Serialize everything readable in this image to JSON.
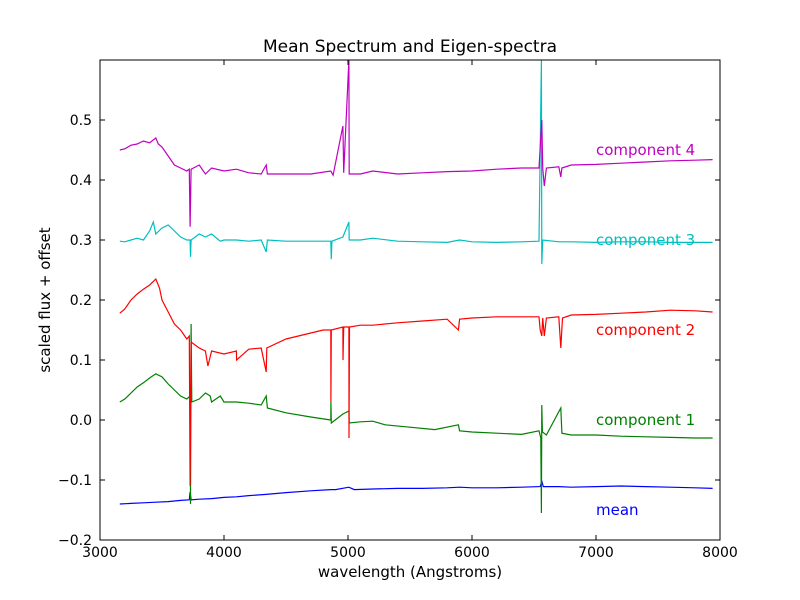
{
  "chart_data": {
    "type": "line",
    "title": "Mean Spectrum and Eigen-spectra",
    "xlabel": "wavelength (Angstroms)",
    "ylabel": "scaled flux + offset",
    "xlim": [
      3000,
      8000
    ],
    "ylim": [
      -0.2,
      0.6
    ],
    "xticks": [
      3000,
      4000,
      5000,
      6000,
      7000,
      8000
    ],
    "xtick_labels": [
      "3000",
      "4000",
      "5000",
      "6000",
      "7000",
      "8000"
    ],
    "yticks": [
      -0.2,
      -0.1,
      0.0,
      0.1,
      0.2,
      0.3,
      0.4,
      0.5
    ],
    "ytick_labels": [
      "−0.2",
      "−0.1",
      "0.0",
      "0.1",
      "0.2",
      "0.3",
      "0.4",
      "0.5"
    ],
    "grid": false,
    "series": [
      {
        "name": "mean",
        "color": "#0000ff",
        "label_pos": [
          7000,
          -0.15
        ],
        "points": [
          [
            3160,
            -0.14
          ],
          [
            3250,
            -0.139
          ],
          [
            3350,
            -0.138
          ],
          [
            3450,
            -0.137
          ],
          [
            3550,
            -0.136
          ],
          [
            3650,
            -0.134
          ],
          [
            3720,
            -0.133
          ],
          [
            3727,
            -0.12
          ],
          [
            3735,
            -0.133
          ],
          [
            3800,
            -0.132
          ],
          [
            3900,
            -0.131
          ],
          [
            4000,
            -0.129
          ],
          [
            4100,
            -0.128
          ],
          [
            4200,
            -0.126
          ],
          [
            4340,
            -0.124
          ],
          [
            4500,
            -0.121
          ],
          [
            4700,
            -0.118
          ],
          [
            4861,
            -0.116
          ],
          [
            4900,
            -0.116
          ],
          [
            5007,
            -0.112
          ],
          [
            5050,
            -0.116
          ],
          [
            5200,
            -0.115
          ],
          [
            5400,
            -0.114
          ],
          [
            5600,
            -0.114
          ],
          [
            5800,
            -0.113
          ],
          [
            5900,
            -0.112
          ],
          [
            6000,
            -0.113
          ],
          [
            6200,
            -0.113
          ],
          [
            6400,
            -0.112
          ],
          [
            6550,
            -0.111
          ],
          [
            6563,
            -0.102
          ],
          [
            6575,
            -0.111
          ],
          [
            6700,
            -0.111
          ],
          [
            6800,
            -0.112
          ],
          [
            7000,
            -0.111
          ],
          [
            7200,
            -0.11
          ],
          [
            7400,
            -0.111
          ],
          [
            7600,
            -0.112
          ],
          [
            7800,
            -0.113
          ],
          [
            7940,
            -0.114
          ]
        ]
      },
      {
        "name": "component 1",
        "color": "#008000",
        "label_pos": [
          7000,
          0.0
        ],
        "points": [
          [
            3160,
            0.03
          ],
          [
            3200,
            0.035
          ],
          [
            3250,
            0.045
          ],
          [
            3300,
            0.055
          ],
          [
            3350,
            0.062
          ],
          [
            3400,
            0.07
          ],
          [
            3450,
            0.077
          ],
          [
            3500,
            0.072
          ],
          [
            3550,
            0.06
          ],
          [
            3600,
            0.05
          ],
          [
            3650,
            0.04
          ],
          [
            3700,
            0.035
          ],
          [
            3727,
            0.04
          ],
          [
            3730,
            -0.14
          ],
          [
            3735,
            0.16
          ],
          [
            3740,
            0.03
          ],
          [
            3800,
            0.035
          ],
          [
            3850,
            0.045
          ],
          [
            3889,
            0.04
          ],
          [
            3900,
            0.03
          ],
          [
            3970,
            0.04
          ],
          [
            4000,
            0.03
          ],
          [
            4100,
            0.03
          ],
          [
            4200,
            0.028
          ],
          [
            4300,
            0.025
          ],
          [
            4340,
            0.04
          ],
          [
            4350,
            0.02
          ],
          [
            4500,
            0.012
          ],
          [
            4700,
            0.005
          ],
          [
            4861,
            0.0
          ],
          [
            4862,
            0.03
          ],
          [
            4865,
            -0.005
          ],
          [
            4959,
            0.01
          ],
          [
            5007,
            0.015
          ],
          [
            5010,
            -0.005
          ],
          [
            5100,
            -0.003
          ],
          [
            5200,
            -0.002
          ],
          [
            5300,
            -0.008
          ],
          [
            5500,
            -0.012
          ],
          [
            5700,
            -0.016
          ],
          [
            5890,
            -0.008
          ],
          [
            5900,
            -0.018
          ],
          [
            6000,
            -0.02
          ],
          [
            6200,
            -0.022
          ],
          [
            6400,
            -0.024
          ],
          [
            6540,
            -0.018
          ],
          [
            6555,
            -0.03
          ],
          [
            6560,
            -0.155
          ],
          [
            6563,
            0.025
          ],
          [
            6568,
            -0.02
          ],
          [
            6600,
            -0.025
          ],
          [
            6716,
            0.02
          ],
          [
            6725,
            -0.022
          ],
          [
            6800,
            -0.025
          ],
          [
            7000,
            -0.025
          ],
          [
            7200,
            -0.027
          ],
          [
            7400,
            -0.028
          ],
          [
            7600,
            -0.029
          ],
          [
            7800,
            -0.03
          ],
          [
            7940,
            -0.03
          ]
        ]
      },
      {
        "name": "component 2",
        "color": "#ff0000",
        "label_pos": [
          7000,
          0.15
        ],
        "points": [
          [
            3160,
            0.178
          ],
          [
            3200,
            0.185
          ],
          [
            3250,
            0.2
          ],
          [
            3300,
            0.21
          ],
          [
            3350,
            0.218
          ],
          [
            3400,
            0.225
          ],
          [
            3450,
            0.235
          ],
          [
            3480,
            0.22
          ],
          [
            3500,
            0.2
          ],
          [
            3550,
            0.18
          ],
          [
            3600,
            0.16
          ],
          [
            3650,
            0.15
          ],
          [
            3700,
            0.135
          ],
          [
            3720,
            0.14
          ],
          [
            3727,
            -0.11
          ],
          [
            3735,
            0.13
          ],
          [
            3800,
            0.12
          ],
          [
            3850,
            0.115
          ],
          [
            3870,
            0.09
          ],
          [
            3900,
            0.115
          ],
          [
            4000,
            0.11
          ],
          [
            4100,
            0.115
          ],
          [
            4102,
            0.1
          ],
          [
            4200,
            0.118
          ],
          [
            4300,
            0.12
          ],
          [
            4340,
            0.08
          ],
          [
            4345,
            0.12
          ],
          [
            4500,
            0.135
          ],
          [
            4700,
            0.145
          ],
          [
            4800,
            0.15
          ],
          [
            4861,
            0.15
          ],
          [
            4862,
            0.03
          ],
          [
            4865,
            0.15
          ],
          [
            4959,
            0.155
          ],
          [
            4960,
            0.1
          ],
          [
            4965,
            0.155
          ],
          [
            5007,
            0.155
          ],
          [
            5008,
            -0.03
          ],
          [
            5012,
            0.155
          ],
          [
            5100,
            0.158
          ],
          [
            5200,
            0.158
          ],
          [
            5400,
            0.162
          ],
          [
            5600,
            0.165
          ],
          [
            5800,
            0.168
          ],
          [
            5890,
            0.15
          ],
          [
            5900,
            0.168
          ],
          [
            6000,
            0.17
          ],
          [
            6200,
            0.172
          ],
          [
            6400,
            0.172
          ],
          [
            6540,
            0.172
          ],
          [
            6550,
            0.15
          ],
          [
            6563,
            0.14
          ],
          [
            6570,
            0.17
          ],
          [
            6583,
            0.14
          ],
          [
            6600,
            0.17
          ],
          [
            6700,
            0.172
          ],
          [
            6716,
            0.12
          ],
          [
            6730,
            0.17
          ],
          [
            6800,
            0.175
          ],
          [
            7000,
            0.176
          ],
          [
            7200,
            0.178
          ],
          [
            7400,
            0.18
          ],
          [
            7600,
            0.183
          ],
          [
            7800,
            0.182
          ],
          [
            7940,
            0.18
          ]
        ]
      },
      {
        "name": "component 3",
        "color": "#00bfbf",
        "label_pos": [
          7000,
          0.3
        ],
        "points": [
          [
            3160,
            0.298
          ],
          [
            3200,
            0.297
          ],
          [
            3250,
            0.3
          ],
          [
            3300,
            0.303
          ],
          [
            3350,
            0.3
          ],
          [
            3400,
            0.315
          ],
          [
            3430,
            0.33
          ],
          [
            3450,
            0.31
          ],
          [
            3500,
            0.32
          ],
          [
            3550,
            0.325
          ],
          [
            3600,
            0.315
          ],
          [
            3650,
            0.305
          ],
          [
            3700,
            0.3
          ],
          [
            3727,
            0.3
          ],
          [
            3730,
            0.272
          ],
          [
            3735,
            0.3
          ],
          [
            3800,
            0.31
          ],
          [
            3850,
            0.305
          ],
          [
            3900,
            0.31
          ],
          [
            3970,
            0.298
          ],
          [
            4000,
            0.3
          ],
          [
            4100,
            0.3
          ],
          [
            4200,
            0.298
          ],
          [
            4300,
            0.3
          ],
          [
            4340,
            0.28
          ],
          [
            4350,
            0.3
          ],
          [
            4500,
            0.298
          ],
          [
            4700,
            0.298
          ],
          [
            4861,
            0.298
          ],
          [
            4865,
            0.268
          ],
          [
            4870,
            0.298
          ],
          [
            4959,
            0.305
          ],
          [
            5007,
            0.33
          ],
          [
            5010,
            0.3
          ],
          [
            5100,
            0.3
          ],
          [
            5200,
            0.303
          ],
          [
            5400,
            0.298
          ],
          [
            5600,
            0.297
          ],
          [
            5800,
            0.296
          ],
          [
            5900,
            0.3
          ],
          [
            6000,
            0.297
          ],
          [
            6200,
            0.296
          ],
          [
            6400,
            0.297
          ],
          [
            6540,
            0.298
          ],
          [
            6560,
            0.6
          ],
          [
            6563,
            0.26
          ],
          [
            6570,
            0.3
          ],
          [
            6700,
            0.297
          ],
          [
            6800,
            0.297
          ],
          [
            7000,
            0.296
          ],
          [
            7200,
            0.297
          ],
          [
            7400,
            0.297
          ],
          [
            7600,
            0.296
          ],
          [
            7800,
            0.296
          ],
          [
            7940,
            0.296
          ]
        ]
      },
      {
        "name": "component 4",
        "color": "#bf00bf",
        "label_pos": [
          7000,
          0.45
        ],
        "points": [
          [
            3160,
            0.45
          ],
          [
            3200,
            0.452
          ],
          [
            3250,
            0.458
          ],
          [
            3300,
            0.46
          ],
          [
            3350,
            0.465
          ],
          [
            3400,
            0.462
          ],
          [
            3450,
            0.47
          ],
          [
            3470,
            0.46
          ],
          [
            3500,
            0.455
          ],
          [
            3550,
            0.44
          ],
          [
            3600,
            0.425
          ],
          [
            3650,
            0.42
          ],
          [
            3700,
            0.415
          ],
          [
            3720,
            0.418
          ],
          [
            3727,
            0.322
          ],
          [
            3735,
            0.418
          ],
          [
            3800,
            0.425
          ],
          [
            3850,
            0.41
          ],
          [
            3900,
            0.42
          ],
          [
            4000,
            0.415
          ],
          [
            4100,
            0.418
          ],
          [
            4200,
            0.412
          ],
          [
            4300,
            0.41
          ],
          [
            4340,
            0.425
          ],
          [
            4350,
            0.41
          ],
          [
            4500,
            0.41
          ],
          [
            4700,
            0.41
          ],
          [
            4861,
            0.415
          ],
          [
            4880,
            0.408
          ],
          [
            4959,
            0.49
          ],
          [
            4965,
            0.412
          ],
          [
            5007,
            0.6
          ],
          [
            5010,
            0.41
          ],
          [
            5100,
            0.41
          ],
          [
            5200,
            0.415
          ],
          [
            5400,
            0.41
          ],
          [
            5600,
            0.412
          ],
          [
            5800,
            0.414
          ],
          [
            6000,
            0.415
          ],
          [
            6200,
            0.418
          ],
          [
            6400,
            0.42
          ],
          [
            6540,
            0.42
          ],
          [
            6563,
            0.5
          ],
          [
            6570,
            0.42
          ],
          [
            6583,
            0.39
          ],
          [
            6600,
            0.42
          ],
          [
            6700,
            0.422
          ],
          [
            6716,
            0.405
          ],
          [
            6725,
            0.42
          ],
          [
            6800,
            0.425
          ],
          [
            7000,
            0.426
          ],
          [
            7200,
            0.428
          ],
          [
            7400,
            0.43
          ],
          [
            7600,
            0.432
          ],
          [
            7800,
            0.433
          ],
          [
            7940,
            0.434
          ]
        ]
      }
    ]
  }
}
